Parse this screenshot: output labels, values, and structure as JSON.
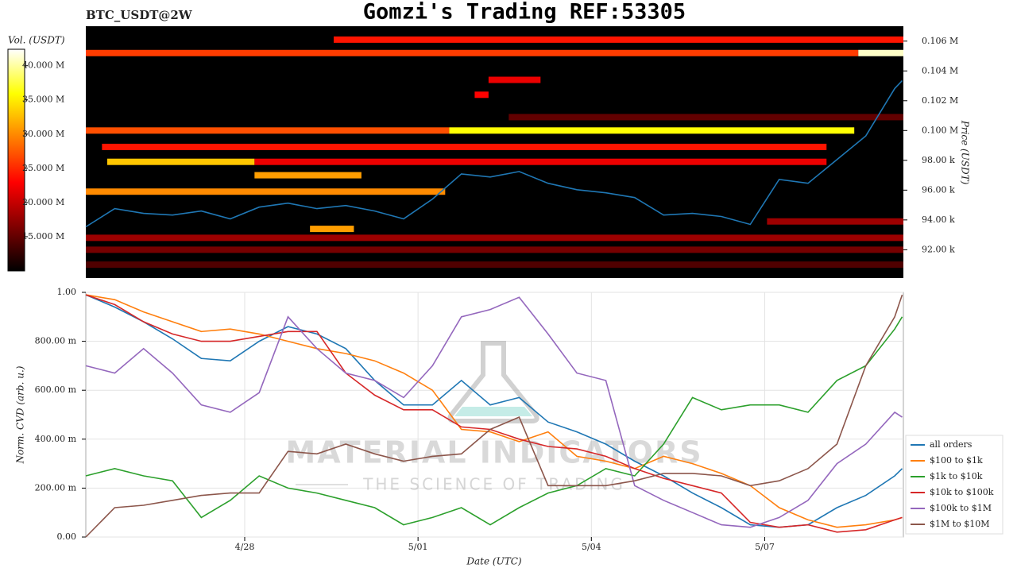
{
  "watermark": {
    "title": "MATERIAL INDICATORS",
    "subtitle": "THE SCIENCE OF TRADING"
  },
  "chart_data": [
    {
      "type": "heatmap",
      "title": "Gomzi's Trading REF:53305",
      "subtitle": "BTC_USDT@2W",
      "ylabel": "Price (USDT)",
      "xlim": [
        -2.75,
        11.4
      ],
      "ylim": [
        90100,
        107000
      ],
      "yticks": [
        {
          "value": 92000,
          "label": "92.00 k"
        },
        {
          "value": 94000,
          "label": "94.00 k"
        },
        {
          "value": 96000,
          "label": "96.00 k"
        },
        {
          "value": 98000,
          "label": "98.00 k"
        },
        {
          "value": 100000,
          "label": "0.100 M"
        },
        {
          "value": 102000,
          "label": "0.102 M"
        },
        {
          "value": 104000,
          "label": "0.104 M"
        },
        {
          "value": 106000,
          "label": "0.106 M"
        }
      ],
      "colorbar": {
        "label": "Vol. (USDT)",
        "lim": [
          10000000,
          42400000
        ],
        "ticks": [
          {
            "value": 15000000,
            "label": "15.000 M"
          },
          {
            "value": 20000000,
            "label": "20.000 M"
          },
          {
            "value": 25000000,
            "label": "25.000 M"
          },
          {
            "value": 30000000,
            "label": "30.000 M"
          },
          {
            "value": 35000000,
            "label": "35.000 M"
          },
          {
            "value": 40000000,
            "label": "40.000 M"
          }
        ]
      },
      "cells": {
        "y": [
          100000,
          100000,
          106100,
          105200,
          105200,
          98900,
          97900,
          97900,
          97000,
          95900,
          93400,
          92800,
          92000,
          103400,
          102400,
          100900,
          93900,
          91000
        ],
        "x_start": [
          -2.75,
          3.54,
          1.54,
          -2.75,
          10.62,
          -2.47,
          -2.38,
          0.17,
          0.17,
          -2.75,
          1.13,
          -2.75,
          -2.75,
          4.22,
          3.98,
          4.57,
          9.04,
          -2.75
        ],
        "x_end": [
          3.54,
          10.55,
          11.4,
          10.62,
          11.4,
          10.07,
          0.17,
          10.07,
          2.02,
          3.47,
          1.89,
          11.4,
          11.4,
          5.12,
          4.22,
          11.4,
          11.4,
          11.4
        ],
        "values": [
          27000000,
          36000000,
          24000000,
          26000000,
          41000000,
          24000000,
          33000000,
          22000000,
          31000000,
          30000000,
          31000000,
          18000000,
          16000000,
          22000000,
          23000000,
          15000000,
          18000000,
          14000000
        ]
      },
      "price": {
        "color": "#1f77b4",
        "x": [
          -2.75,
          -2.25,
          -1.75,
          -1.25,
          -0.75,
          -0.25,
          0.25,
          0.75,
          1.25,
          1.75,
          2.25,
          2.75,
          3.25,
          3.75,
          4.25,
          4.75,
          5.25,
          5.75,
          6.25,
          6.75,
          7.25,
          7.75,
          8.25,
          8.75,
          9.25,
          9.75,
          10.25,
          10.75,
          11.25,
          11.38
        ],
        "values": [
          93540,
          94760,
          94440,
          94330,
          94600,
          94070,
          94860,
          95130,
          94760,
          94970,
          94600,
          94070,
          95400,
          97090,
          96880,
          97250,
          96460,
          96030,
          95820,
          95500,
          94330,
          94440,
          94230,
          93700,
          96720,
          96460,
          98050,
          99640,
          102820,
          103350
        ]
      }
    },
    {
      "type": "line",
      "xlabel": "Date (UTC)",
      "ylabel": "Norm. CVD (arb. u.)",
      "grid": true,
      "legend": "lower right",
      "xlim": [
        -2.75,
        11.4
      ],
      "ylim": [
        0,
        1
      ],
      "xticks": [
        {
          "value": 0,
          "label": "4/28"
        },
        {
          "value": 3,
          "label": "5/01"
        },
        {
          "value": 6,
          "label": "5/04"
        },
        {
          "value": 9,
          "label": "5/07"
        }
      ],
      "yticks": [
        {
          "value": 0,
          "label": "0.00"
        },
        {
          "value": 0.2,
          "label": "200.00 m"
        },
        {
          "value": 0.4,
          "label": "400.00 m"
        },
        {
          "value": 0.6,
          "label": "600.00 m"
        },
        {
          "value": 0.8,
          "label": "800.00 m"
        },
        {
          "value": 1,
          "label": "1.00"
        }
      ],
      "x": [
        -2.75,
        -2.25,
        -1.75,
        -1.25,
        -0.75,
        -0.25,
        0.25,
        0.75,
        1.25,
        1.75,
        2.25,
        2.75,
        3.25,
        3.75,
        4.25,
        4.75,
        5.25,
        5.75,
        6.25,
        6.75,
        7.25,
        7.75,
        8.25,
        8.75,
        9.25,
        9.75,
        10.25,
        10.75,
        11.25,
        11.38
      ],
      "series": [
        {
          "name": "all orders",
          "color": "#1f77b4",
          "values": [
            0.99,
            0.94,
            0.88,
            0.81,
            0.73,
            0.72,
            0.8,
            0.86,
            0.83,
            0.77,
            0.64,
            0.54,
            0.54,
            0.64,
            0.54,
            0.57,
            0.47,
            0.43,
            0.38,
            0.31,
            0.25,
            0.18,
            0.12,
            0.05,
            0.04,
            0.05,
            0.12,
            0.17,
            0.25,
            0.28
          ]
        },
        {
          "name": "$100 to $1k",
          "color": "#ff7f0e",
          "values": [
            0.99,
            0.97,
            0.92,
            0.88,
            0.84,
            0.85,
            0.83,
            0.8,
            0.77,
            0.75,
            0.72,
            0.67,
            0.6,
            0.44,
            0.43,
            0.39,
            0.43,
            0.33,
            0.31,
            0.28,
            0.33,
            0.3,
            0.26,
            0.21,
            0.12,
            0.07,
            0.04,
            0.05,
            0.07,
            0.08
          ]
        },
        {
          "name": "$1k to $10k",
          "color": "#2ca02c",
          "values": [
            0.25,
            0.28,
            0.25,
            0.23,
            0.08,
            0.15,
            0.25,
            0.2,
            0.18,
            0.15,
            0.12,
            0.05,
            0.08,
            0.12,
            0.05,
            0.12,
            0.18,
            0.21,
            0.28,
            0.25,
            0.38,
            0.57,
            0.52,
            0.54,
            0.54,
            0.51,
            0.64,
            0.7,
            0.85,
            0.9
          ]
        },
        {
          "name": "$10k to $100k",
          "color": "#d62728",
          "values": [
            0.99,
            0.95,
            0.88,
            0.83,
            0.8,
            0.8,
            0.82,
            0.84,
            0.84,
            0.67,
            0.58,
            0.52,
            0.52,
            0.45,
            0.44,
            0.4,
            0.37,
            0.36,
            0.33,
            0.28,
            0.24,
            0.21,
            0.18,
            0.06,
            0.04,
            0.05,
            0.02,
            0.03,
            0.07,
            0.08
          ]
        },
        {
          "name": "$100k to $1M",
          "color": "#9467bd",
          "values": [
            0.7,
            0.67,
            0.77,
            0.67,
            0.54,
            0.51,
            0.59,
            0.9,
            0.77,
            0.67,
            0.64,
            0.57,
            0.7,
            0.9,
            0.93,
            0.98,
            0.83,
            0.67,
            0.64,
            0.21,
            0.15,
            0.1,
            0.05,
            0.04,
            0.08,
            0.15,
            0.3,
            0.38,
            0.51,
            0.49
          ]
        },
        {
          "name": "$1M to $10M",
          "color": "#8c564b",
          "values": [
            0.0,
            0.12,
            0.13,
            0.15,
            0.17,
            0.18,
            0.18,
            0.35,
            0.34,
            0.38,
            0.34,
            0.31,
            0.33,
            0.34,
            0.44,
            0.49,
            0.21,
            0.21,
            0.21,
            0.23,
            0.26,
            0.26,
            0.25,
            0.21,
            0.23,
            0.28,
            0.38,
            0.7,
            0.9,
            0.99
          ]
        }
      ]
    }
  ]
}
